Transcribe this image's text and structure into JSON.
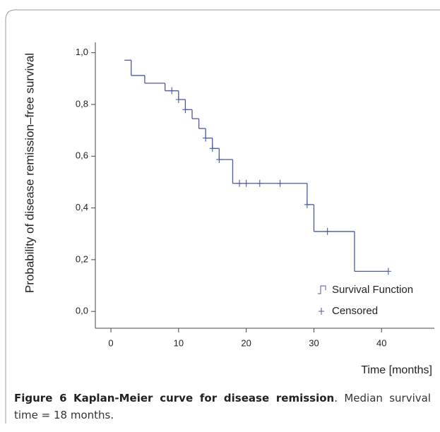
{
  "chart_data": {
    "type": "step",
    "y_label": "Probability of disease remission–free survival",
    "x_label": "Time [months]",
    "xlim": [
      -2.3,
      47.8
    ],
    "ylim": [
      -0.065,
      1.04
    ],
    "xticks": [
      0,
      10,
      20,
      30,
      40
    ],
    "yticks": [
      {
        "value": 0,
        "label": "0,0"
      },
      {
        "value": 0.2,
        "label": "0,2"
      },
      {
        "value": 0.4,
        "label": "0,4"
      },
      {
        "value": 0.6,
        "label": "0,6"
      },
      {
        "value": 0.8,
        "label": "0,8"
      },
      {
        "value": 1,
        "label": "1,0"
      }
    ],
    "legend": "lower right",
    "series": [
      {
        "name": "Survival Function",
        "color": "#4a58a6",
        "x": [
          2,
          3,
          5,
          8,
          10,
          11,
          12,
          13,
          14,
          15,
          16,
          18,
          29,
          30,
          36
        ],
        "values": [
          0.971,
          0.912,
          0.882,
          0.853,
          0.819,
          0.78,
          0.745,
          0.707,
          0.67,
          0.63,
          0.587,
          0.495,
          0.413,
          0.309,
          0.155
        ]
      },
      {
        "name": "Censored",
        "color": "#4a58a6",
        "marker": "plus",
        "x": [
          9,
          10,
          11,
          14,
          15,
          16,
          19,
          20,
          22,
          25,
          29,
          32,
          41
        ],
        "values": [
          0.853,
          0.819,
          0.78,
          0.67,
          0.63,
          0.587,
          0.495,
          0.495,
          0.495,
          0.495,
          0.413,
          0.309,
          0.155
        ]
      }
    ]
  },
  "caption": {
    "label": "Figure 6",
    "title": "Kaplan-Meier curve for disease remission",
    "text": ". Median survival time = 18 months."
  }
}
